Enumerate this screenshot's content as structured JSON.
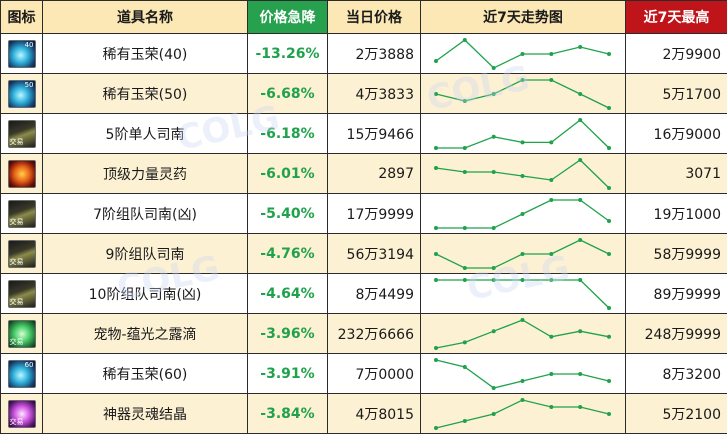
{
  "header": {
    "icon": "图标",
    "name": "道具名称",
    "drop": "价格急降",
    "price": "当日价格",
    "trend": "近7天走势图",
    "max": "近7天最高"
  },
  "colors": {
    "drop_header": "#27a14e",
    "max_header": "#c0141b",
    "drop_text": "#1fa24b",
    "trend_line": "#1fa24b"
  },
  "rows": [
    {
      "icon": "gem-icon",
      "level": "40",
      "tag": "",
      "name": "稀有玉荣(40)",
      "drop": "-13.26%",
      "price": "2万3888",
      "max": "2万9900",
      "trend": [
        3,
        6,
        2,
        4,
        4,
        5,
        4
      ]
    },
    {
      "icon": "gem-icon",
      "level": "50",
      "tag": "",
      "name": "稀有玉荣(50)",
      "drop": "-6.68%",
      "price": "4万3833",
      "max": "5万1700",
      "trend": [
        3,
        2,
        3,
        5,
        5,
        3,
        1
      ]
    },
    {
      "icon": "compass-icon",
      "level": "",
      "tag": "交易",
      "name": "5阶单人司南",
      "drop": "-6.18%",
      "price": "15万9466",
      "max": "16万9000",
      "trend": [
        2,
        2,
        4,
        3,
        3,
        7,
        2
      ]
    },
    {
      "icon": "potion-icon",
      "level": "",
      "tag": "",
      "name": "顶级力量灵药",
      "drop": "-6.01%",
      "price": "2897",
      "max": "3071",
      "trend": [
        6,
        5,
        5,
        4,
        3,
        8,
        1
      ]
    },
    {
      "icon": "compass-icon",
      "level": "",
      "tag": "交易",
      "name": "7阶组队司南(凶)",
      "drop": "-5.40%",
      "price": "17万9999",
      "max": "19万1000",
      "trend": [
        2,
        2,
        2,
        4,
        6,
        6,
        3
      ]
    },
    {
      "icon": "compass-icon",
      "level": "",
      "tag": "交易",
      "name": "9阶组队司南",
      "drop": "-4.76%",
      "price": "56万3194",
      "max": "58万9999",
      "trend": [
        2,
        1,
        1,
        2,
        2,
        3,
        2
      ]
    },
    {
      "icon": "compass-icon",
      "level": "",
      "tag": "交易",
      "name": "10阶组队司南(凶)",
      "drop": "-4.64%",
      "price": "8万4499",
      "max": "89万9999",
      "trend": [
        6,
        6,
        6,
        6,
        6,
        6,
        1
      ]
    },
    {
      "icon": "dewdrop-icon",
      "level": "",
      "tag": "交易",
      "name": "宠物-蕴光之露滴",
      "drop": "-3.96%",
      "price": "232万6666",
      "max": "248万9999",
      "trend": [
        1,
        2,
        4,
        6,
        3,
        4,
        3
      ]
    },
    {
      "icon": "gem-icon",
      "level": "60",
      "tag": "",
      "name": "稀有玉荣(60)",
      "drop": "-3.91%",
      "price": "7万0000",
      "max": "8万3200",
      "trend": [
        6,
        5,
        2,
        3,
        4,
        4,
        3
      ]
    },
    {
      "icon": "crystal-icon",
      "level": "",
      "tag": "交易",
      "name": "神器灵魂结晶",
      "drop": "-3.84%",
      "price": "4万8015",
      "max": "5万2100",
      "trend": [
        2,
        3,
        4,
        6,
        5,
        5,
        4
      ]
    }
  ]
}
